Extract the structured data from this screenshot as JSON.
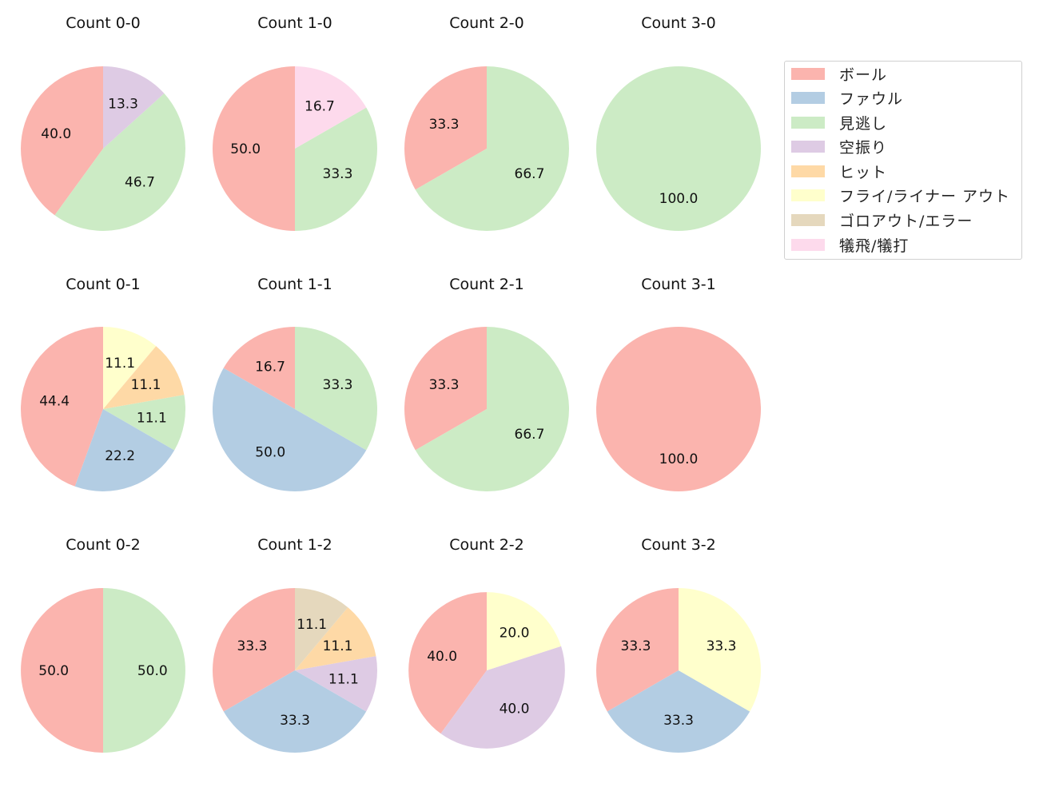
{
  "chart_data": {
    "type": "pie",
    "legend": {
      "position": "upper right",
      "entries": [
        {
          "label": "ボール",
          "color": "#fbb4ae"
        },
        {
          "label": "ファウル",
          "color": "#b3cde3"
        },
        {
          "label": "見逃し",
          "color": "#ccebc5"
        },
        {
          "label": "空振り",
          "color": "#decbe4"
        },
        {
          "label": "ヒット",
          "color": "#fed9a6"
        },
        {
          "label": "フライ/ライナー アウト",
          "color": "#ffffcc"
        },
        {
          "label": "ゴロアウト/エラー",
          "color": "#e5d8bd"
        },
        {
          "label": "犠飛/犠打",
          "color": "#fddaec"
        }
      ]
    },
    "charts": [
      {
        "title": "Count 0-0",
        "row": 0,
        "col": 0,
        "slices": [
          {
            "label": "ボール",
            "value": 40.0
          },
          {
            "label": "見逃し",
            "value": 46.7
          },
          {
            "label": "空振り",
            "value": 13.3
          }
        ]
      },
      {
        "title": "Count 1-0",
        "row": 0,
        "col": 1,
        "slices": [
          {
            "label": "ボール",
            "value": 50.0
          },
          {
            "label": "見逃し",
            "value": 33.3
          },
          {
            "label": "犠飛/犠打",
            "value": 16.7
          }
        ]
      },
      {
        "title": "Count 2-0",
        "row": 0,
        "col": 2,
        "slices": [
          {
            "label": "ボール",
            "value": 33.3
          },
          {
            "label": "見逃し",
            "value": 66.7
          }
        ]
      },
      {
        "title": "Count 3-0",
        "row": 0,
        "col": 3,
        "slices": [
          {
            "label": "見逃し",
            "value": 100.0
          }
        ]
      },
      {
        "title": "Count 0-1",
        "row": 1,
        "col": 0,
        "slices": [
          {
            "label": "ボール",
            "value": 44.4
          },
          {
            "label": "ファウル",
            "value": 22.2
          },
          {
            "label": "見逃し",
            "value": 11.1
          },
          {
            "label": "ヒット",
            "value": 11.1
          },
          {
            "label": "フライ/ライナー アウト",
            "value": 11.1
          }
        ]
      },
      {
        "title": "Count 1-1",
        "row": 1,
        "col": 1,
        "slices": [
          {
            "label": "ボール",
            "value": 16.7
          },
          {
            "label": "ファウル",
            "value": 50.0
          },
          {
            "label": "見逃し",
            "value": 33.3
          }
        ]
      },
      {
        "title": "Count 2-1",
        "row": 1,
        "col": 2,
        "slices": [
          {
            "label": "ボール",
            "value": 33.3
          },
          {
            "label": "見逃し",
            "value": 66.7
          }
        ]
      },
      {
        "title": "Count 3-1",
        "row": 1,
        "col": 3,
        "slices": [
          {
            "label": "ボール",
            "value": 100.0
          }
        ]
      },
      {
        "title": "Count 0-2",
        "row": 2,
        "col": 0,
        "slices": [
          {
            "label": "ボール",
            "value": 50.0
          },
          {
            "label": "見逃し",
            "value": 50.0
          }
        ]
      },
      {
        "title": "Count 1-2",
        "row": 2,
        "col": 1,
        "slices": [
          {
            "label": "ボール",
            "value": 33.3
          },
          {
            "label": "ファウル",
            "value": 33.3
          },
          {
            "label": "空振り",
            "value": 11.1
          },
          {
            "label": "ヒット",
            "value": 11.1
          },
          {
            "label": "ゴロアウト/エラー",
            "value": 11.1
          }
        ]
      },
      {
        "title": "Count 2-2",
        "row": 2,
        "col": 2,
        "radius_scale": 0.95,
        "slices": [
          {
            "label": "ボール",
            "value": 40.0
          },
          {
            "label": "空振り",
            "value": 40.0
          },
          {
            "label": "フライ/ライナー アウト",
            "value": 20.0
          }
        ]
      },
      {
        "title": "Count 3-2",
        "row": 2,
        "col": 3,
        "slices": [
          {
            "label": "ボール",
            "value": 33.3
          },
          {
            "label": "ファウル",
            "value": 33.3
          },
          {
            "label": "フライ/ライナー アウト",
            "value": 33.3
          }
        ]
      }
    ]
  }
}
